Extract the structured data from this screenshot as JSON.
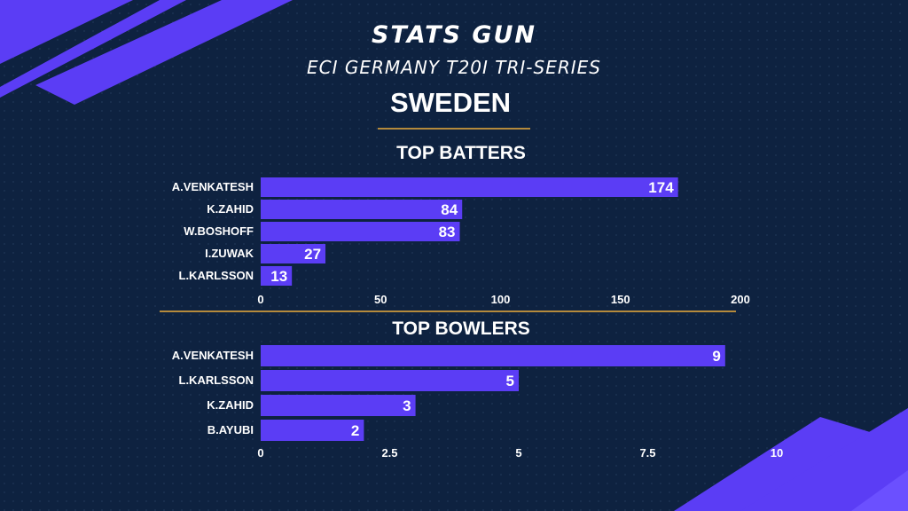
{
  "header": {
    "title": "STATS GUN",
    "subtitle": "ECI GERMANY T20I TRI-SERIES",
    "team": "SWEDEN"
  },
  "colors": {
    "background": "#0e2240",
    "bar": "#5b3df5",
    "accent_line": "#b58a3c",
    "text": "#ffffff"
  },
  "chart_data": [
    {
      "type": "bar",
      "orientation": "horizontal",
      "title": "TOP BATTERS",
      "categories": [
        "A.VENKATESH",
        "K.ZAHID",
        "W.BOSHOFF",
        "I.ZUWAK",
        "L.KARLSSON"
      ],
      "values": [
        174,
        84,
        83,
        27,
        13
      ],
      "xlim": [
        0,
        200
      ],
      "xticks": [
        0,
        50,
        100,
        150,
        200
      ],
      "xtick_labels": [
        "0",
        "50",
        "100",
        "150",
        "200"
      ],
      "data_labels": true,
      "grid": false,
      "legend": "none"
    },
    {
      "type": "bar",
      "orientation": "horizontal",
      "title": "TOP BOWLERS",
      "categories": [
        "A.VENKATESH",
        "L.KARLSSON",
        "K.ZAHID",
        "B.AYUBI"
      ],
      "values": [
        9,
        5,
        3,
        2
      ],
      "xlim": [
        0,
        10
      ],
      "xticks": [
        0,
        2.5,
        5,
        7.5,
        10
      ],
      "xtick_labels": [
        "0",
        "2.5",
        "5",
        "7.5",
        "10"
      ],
      "data_labels": true,
      "grid": false,
      "legend": "none"
    }
  ]
}
